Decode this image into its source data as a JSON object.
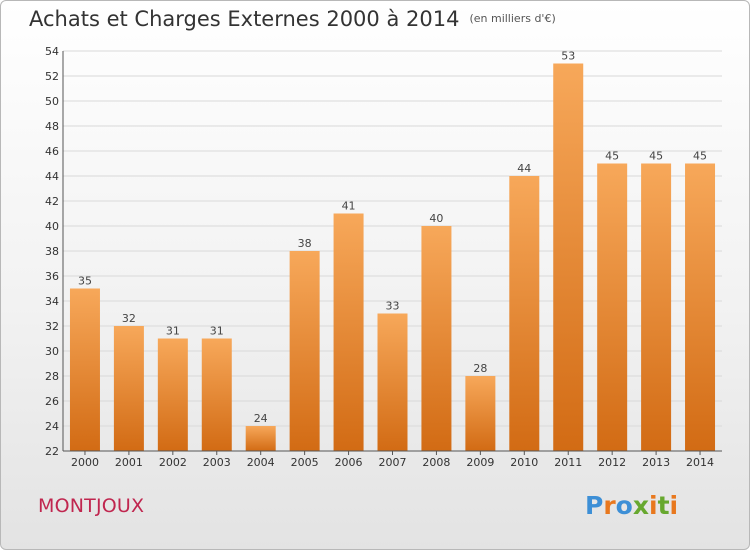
{
  "title": "Achats et Charges Externes 2000 à 2014",
  "title_unit": "(en milliers d'€)",
  "place": "MONTJOUX",
  "logo_text": "Proxiti",
  "colors": {
    "bar_top": "#f7a85a",
    "bar_bottom": "#d26b14",
    "grid": "#d9d9d9",
    "place": "#c0264f",
    "logo": [
      "#3d8fd6",
      "#e8781e",
      "#3d8fd6",
      "#67a82f",
      "#e8781e",
      "#67a82f",
      "#e8781e"
    ]
  },
  "chart_data": {
    "type": "bar",
    "title": "Achats et Charges Externes 2000 à 2014",
    "xlabel": "",
    "ylabel": "",
    "categories": [
      "2000",
      "2001",
      "2002",
      "2003",
      "2004",
      "2005",
      "2006",
      "2007",
      "2008",
      "2009",
      "2010",
      "2011",
      "2012",
      "2013",
      "2014"
    ],
    "values": [
      35,
      32,
      31,
      31,
      24,
      38,
      41,
      33,
      40,
      28,
      44,
      53,
      45,
      45,
      45
    ],
    "ylim": [
      22,
      54
    ],
    "yticks": [
      22,
      24,
      26,
      28,
      30,
      32,
      34,
      36,
      38,
      40,
      42,
      44,
      46,
      48,
      50,
      52,
      54
    ],
    "grid": true,
    "legend": "none"
  }
}
